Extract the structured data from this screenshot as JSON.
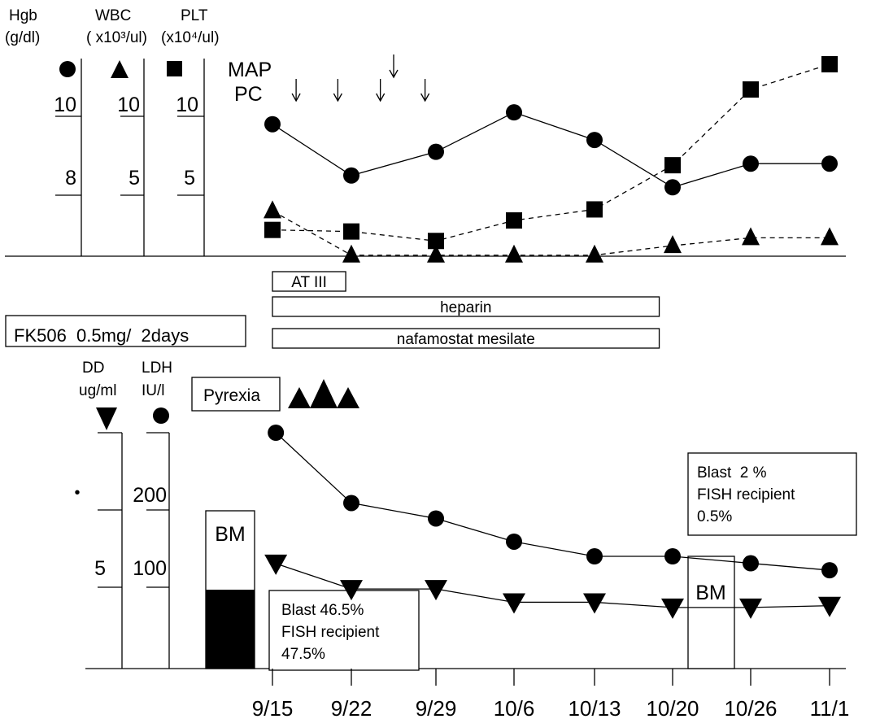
{
  "chart_data": [
    {
      "type": "line",
      "title": "",
      "x": [
        "9/15",
        "9/22",
        "9/29",
        "10/6",
        "10/13",
        "10/20",
        "10/26",
        "11/1"
      ],
      "axes": [
        {
          "key": "hgb",
          "label_line1": "Hgb",
          "label_line2": "(g/dl)",
          "marker": "circle",
          "ticks": [
            "10",
            "8"
          ]
        },
        {
          "key": "wbc",
          "label_line1": "WBC",
          "label_line2": "( x10³/ul)",
          "marker": "triangle-up",
          "ticks": [
            "10",
            "5"
          ]
        },
        {
          "key": "plt",
          "label_line1": "PLT",
          "label_line2": "(x10⁴/ul)",
          "marker": "square",
          "ticks": [
            "10",
            "5"
          ]
        }
      ],
      "series": [
        {
          "key": "hgb",
          "marker": "circle",
          "line": "solid",
          "values": [
            9.8,
            8.5,
            9.1,
            10.1,
            9.4,
            8.2,
            8.8,
            8.8
          ]
        },
        {
          "key": "wbc",
          "marker": "triangle-up",
          "line": "dashed",
          "values": [
            4.0,
            1.2,
            1.2,
            1.2,
            1.2,
            1.8,
            2.3,
            2.3
          ]
        },
        {
          "key": "plt",
          "marker": "square",
          "line": "dashed",
          "values": [
            2.8,
            2.7,
            2.1,
            3.4,
            4.1,
            6.9,
            11.7,
            13.3
          ]
        }
      ],
      "transfusions": [
        {
          "label": "MAP",
          "arrows_at": [
            10.5
          ]
        },
        {
          "label": "PC",
          "arrows_at": [
            2.1,
            5.8,
            9.4,
            13.1
          ]
        }
      ]
    },
    {
      "type": "line",
      "title": "",
      "x": [
        "9/15",
        "9/22",
        "9/29",
        "10/6",
        "10/13",
        "10/20",
        "10/26",
        "11/1"
      ],
      "axes": [
        {
          "key": "dd",
          "label_line1": "DD",
          "label_line2": "ug/ml",
          "marker": "triangle-down",
          "ticks": [
            "5"
          ]
        },
        {
          "key": "ldh",
          "label_line1": "LDH",
          "label_line2": "IU/l",
          "marker": "circle",
          "ticks": [
            "200",
            "100"
          ]
        }
      ],
      "series": [
        {
          "key": "ldh",
          "marker": "circle",
          "line": "solid",
          "values": [
            [
              0.3,
              300
            ],
            [
              7,
              209
            ],
            [
              14,
              189
            ],
            [
              21,
              159
            ],
            [
              28,
              140
            ],
            [
              35,
              140
            ],
            [
              41,
              131
            ],
            [
              47,
              122
            ]
          ]
        },
        {
          "key": "dd",
          "marker": "triangle-down",
          "line": "solid",
          "values": [
            [
              0.3,
              9.1
            ],
            [
              7,
              4.7
            ],
            [
              14,
              4.7
            ],
            [
              21,
              2.4
            ],
            [
              28,
              2.4
            ],
            [
              35,
              1.5
            ],
            [
              41,
              1.5
            ],
            [
              47,
              1.8
            ]
          ]
        }
      ],
      "tick_dot": "•",
      "bm_bar": {
        "label": "BM",
        "filled_fraction": 0.5
      }
    }
  ],
  "treatments": [
    {
      "label": "AT III",
      "start_day": 0,
      "end_day": 6.5
    },
    {
      "label": "heparin",
      "start_day": 0,
      "end_day": 33.8
    },
    {
      "label": "nafamostat mesilate",
      "start_day": 0,
      "end_day": 33.8
    }
  ],
  "fk506": "FK506  0.5mg/  2days",
  "pyrexia": {
    "label": "Pyrexia",
    "marker": "triangle-up",
    "count": 3
  },
  "blast_early": {
    "line1": "Blast 46.5%",
    "line2": "FISH recipient",
    "line3": "47.5%"
  },
  "blast_late": {
    "line1": "Blast  2 %",
    "line2": "FISH recipient",
    "line3": "0.5%"
  },
  "bm_late": "BM"
}
